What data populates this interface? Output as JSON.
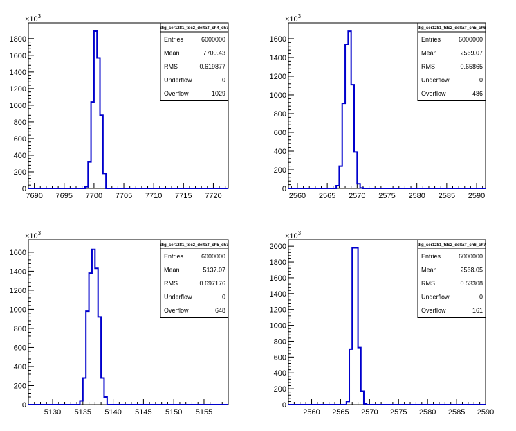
{
  "chart_data": [
    {
      "type": "histogram",
      "title": "",
      "exponent_label": "×10",
      "exponent": "3",
      "x": [
        7698.75,
        7699.25,
        7699.75,
        7700.25,
        7700.75,
        7701.25,
        7701.75
      ],
      "values": [
        20,
        320,
        1040,
        1890,
        1570,
        880,
        180
      ],
      "xlim": [
        7689,
        7722.5
      ],
      "ylim": [
        0,
        1990
      ],
      "x_ticks": [
        7690,
        7695,
        7700,
        7705,
        7710,
        7715,
        7720
      ],
      "y_ticks": [
        0,
        200,
        400,
        600,
        800,
        1000,
        1200,
        1400,
        1600,
        1800
      ],
      "stats": {
        "name": "dig_ser1281_tdc2_deltaT_ch4_ch7",
        "rows": [
          {
            "label": "Entries",
            "value": "6000000"
          },
          {
            "label": "Mean",
            "value": "7700.43"
          },
          {
            "label": "RMS",
            "value": "0.619877"
          },
          {
            "label": "Underflow",
            "value": "0"
          },
          {
            "label": "Overflow",
            "value": "1029"
          }
        ]
      },
      "color": "#0000cc"
    },
    {
      "type": "histogram",
      "title": "",
      "exponent_label": "×10",
      "exponent": "3",
      "x": [
        2566.75,
        2567.25,
        2567.75,
        2568.25,
        2568.75,
        2569.25,
        2569.75,
        2570.25,
        2570.75
      ],
      "values": [
        30,
        240,
        910,
        1540,
        1680,
        1110,
        390,
        50,
        5
      ],
      "xlim": [
        2558.5,
        2591.5
      ],
      "ylim": [
        0,
        1770
      ],
      "x_ticks": [
        2560,
        2565,
        2570,
        2575,
        2580,
        2585,
        2590
      ],
      "y_ticks": [
        0,
        200,
        400,
        600,
        800,
        1000,
        1200,
        1400,
        1600
      ],
      "stats": {
        "name": "dig_ser1281_tdc2_deltaT_ch5_ch6",
        "rows": [
          {
            "label": "Entries",
            "value": "6000000"
          },
          {
            "label": "Mean",
            "value": "2569.07"
          },
          {
            "label": "RMS",
            "value": "0.65865"
          },
          {
            "label": "Underflow",
            "value": "0"
          },
          {
            "label": "Overflow",
            "value": "486"
          }
        ]
      },
      "color": "#0000cc"
    },
    {
      "type": "histogram",
      "title": "",
      "exponent_label": "×10",
      "exponent": "3",
      "x": [
        5134.75,
        5135.25,
        5135.75,
        5136.25,
        5136.75,
        5137.25,
        5137.75,
        5138.25,
        5138.75
      ],
      "values": [
        40,
        280,
        980,
        1380,
        1630,
        1430,
        920,
        280,
        80
      ],
      "xlim": [
        5126,
        5159
      ],
      "ylim": [
        0,
        1730
      ],
      "x_ticks": [
        5130,
        5135,
        5140,
        5145,
        5150,
        5155
      ],
      "y_ticks": [
        0,
        200,
        400,
        600,
        800,
        1000,
        1200,
        1400,
        1600
      ],
      "stats": {
        "name": "dig_ser1281_tdc2_deltaT_ch5_ch7",
        "rows": [
          {
            "label": "Entries",
            "value": "6000000"
          },
          {
            "label": "Mean",
            "value": "5137.07"
          },
          {
            "label": "RMS",
            "value": "0.697176"
          },
          {
            "label": "Underflow",
            "value": "0"
          },
          {
            "label": "Overflow",
            "value": "648"
          }
        ]
      },
      "color": "#0000cc"
    },
    {
      "type": "histogram",
      "title": "",
      "exponent_label": "×10",
      "exponent": "3",
      "x": [
        2566.25,
        2566.75,
        2567.25,
        2567.75,
        2568.25,
        2568.75,
        2569.25
      ],
      "values": [
        40,
        700,
        1980,
        1980,
        720,
        170,
        10
      ],
      "xlim": [
        2556,
        2590
      ],
      "ylim": [
        0,
        2080
      ],
      "x_ticks": [
        2560,
        2565,
        2570,
        2575,
        2580,
        2585,
        2590
      ],
      "y_ticks": [
        0,
        200,
        400,
        600,
        800,
        1000,
        1200,
        1400,
        1600,
        1800,
        2000
      ],
      "stats": {
        "name": "dig_ser1281_tdc2_deltaT_ch6_ch7",
        "rows": [
          {
            "label": "Entries",
            "value": "6000000"
          },
          {
            "label": "Mean",
            "value": "2568.05"
          },
          {
            "label": "RMS",
            "value": "0.53308"
          },
          {
            "label": "Underflow",
            "value": "0"
          },
          {
            "label": "Overflow",
            "value": "161"
          }
        ]
      },
      "color": "#0000cc"
    }
  ]
}
